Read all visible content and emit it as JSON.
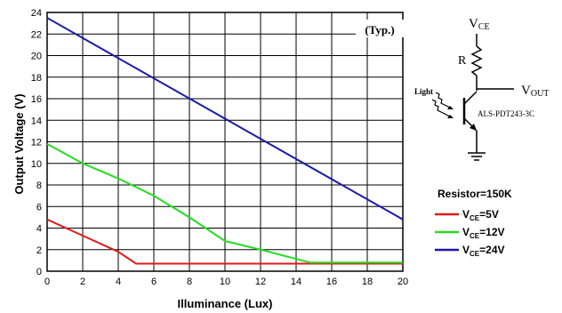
{
  "chart_data": {
    "type": "line",
    "title": "",
    "xlabel": "Illuminance (Lux)",
    "ylabel": "Output Voltage (V)",
    "xlim": [
      0,
      20
    ],
    "ylim": [
      0,
      24
    ],
    "x_ticks": [
      "0",
      "2",
      "4",
      "6",
      "8",
      "10",
      "12",
      "14",
      "16",
      "18",
      "20"
    ],
    "y_ticks": [
      "0",
      "2",
      "4",
      "6",
      "8",
      "10",
      "12",
      "14",
      "16",
      "18",
      "20",
      "22",
      "24"
    ],
    "grid": true,
    "annotation": "(Typ.)",
    "legend_title": "Resistor=150K",
    "legend_position": "right",
    "series": [
      {
        "label_main": "V",
        "label_sub": "CE",
        "label_tail": "=5V",
        "color": "#e01a1a",
        "points": [
          [
            0,
            4.8
          ],
          [
            2,
            3.3
          ],
          [
            4,
            1.8
          ],
          [
            5,
            0.7
          ],
          [
            20,
            0.7
          ]
        ]
      },
      {
        "label_main": "V",
        "label_sub": "CE",
        "label_tail": "=12V",
        "color": "#22dd22",
        "points": [
          [
            0,
            11.8
          ],
          [
            2,
            10.0
          ],
          [
            4,
            8.6
          ],
          [
            6,
            7.0
          ],
          [
            8,
            5.0
          ],
          [
            10,
            2.8
          ],
          [
            12,
            2.0
          ],
          [
            14.8,
            0.8
          ],
          [
            20,
            0.8
          ]
        ]
      },
      {
        "label_main": "V",
        "label_sub": "CE",
        "label_tail": "=24V",
        "color": "#1a1aaa",
        "points": [
          [
            0,
            23.5
          ],
          [
            20,
            4.8
          ]
        ]
      }
    ]
  },
  "circuit": {
    "vce_main": "V",
    "vce_sub": "CE",
    "r_label": "R",
    "vout_main": "V",
    "vout_sub": "OUT",
    "light_label": "Light",
    "part_label": "ALS-PDT243-3C"
  }
}
